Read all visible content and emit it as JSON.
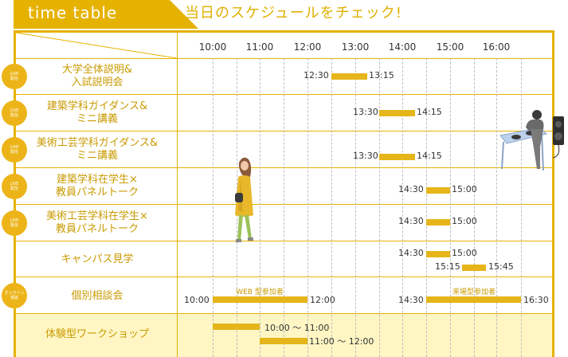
{
  "header": {
    "tab_label": "time table",
    "subtitle": "当日のスケジュールをチェック!"
  },
  "timeline": {
    "hours": [
      "10:00",
      "11:00",
      "12:00",
      "13:00",
      "14:00",
      "15:00",
      "16:00"
    ]
  },
  "rows": [
    {
      "label": "大学全体説明&\n入試説明会",
      "badge": "LIVE\n配信",
      "sessions": [
        {
          "start": "12:30",
          "end": "13:15"
        }
      ]
    },
    {
      "label": "建築学科ガイダンス&\nミニ講義",
      "badge": "LIVE\n配信",
      "sessions": [
        {
          "start": "13:30",
          "end": "14:15"
        }
      ]
    },
    {
      "label": "美術工芸学科ガイダンス&\nミニ講義",
      "badge": "LIVE\n配信",
      "sessions": [
        {
          "start": "13:30",
          "end": "14:15"
        }
      ]
    },
    {
      "label": "建築学科在学生×\n教員パネルトーク",
      "badge": "LIVE\n配信",
      "sessions": [
        {
          "start": "14:30",
          "end": "15:00"
        }
      ]
    },
    {
      "label": "美術工芸学科在学生×\n教員パネルトーク",
      "badge": "LIVE\n配信",
      "sessions": [
        {
          "start": "14:30",
          "end": "15:00"
        }
      ]
    },
    {
      "label": "キャンパス見学",
      "badge": "",
      "sessions": [
        {
          "start": "14:30",
          "end": "15:00"
        },
        {
          "start": "15:15",
          "end": "15:45"
        }
      ]
    },
    {
      "label": "個別相談会",
      "badge": "オンライン\n相談",
      "sessions": [
        {
          "start": "10:00",
          "end": "12:00",
          "note": "WEB 型参加者"
        },
        {
          "start": "14:30",
          "end": "16:30",
          "note": "来場型参加者"
        }
      ]
    },
    {
      "label": "体験型ワークショップ",
      "badge": "",
      "sessions": [
        {
          "start": "10:00",
          "end": "11:00",
          "range_text": "10:00 〜 11:00"
        },
        {
          "start": "11:00",
          "end": "12:00",
          "range_text": "11:00 〜 12:00"
        }
      ]
    }
  ],
  "colors": {
    "accent": "#e6b200",
    "bar": "#e5b51a",
    "label": "#c99a00",
    "highlight_row": "#fff6c4"
  },
  "illustrations": [
    "walking-person-icon",
    "dj-turntable-icon"
  ]
}
